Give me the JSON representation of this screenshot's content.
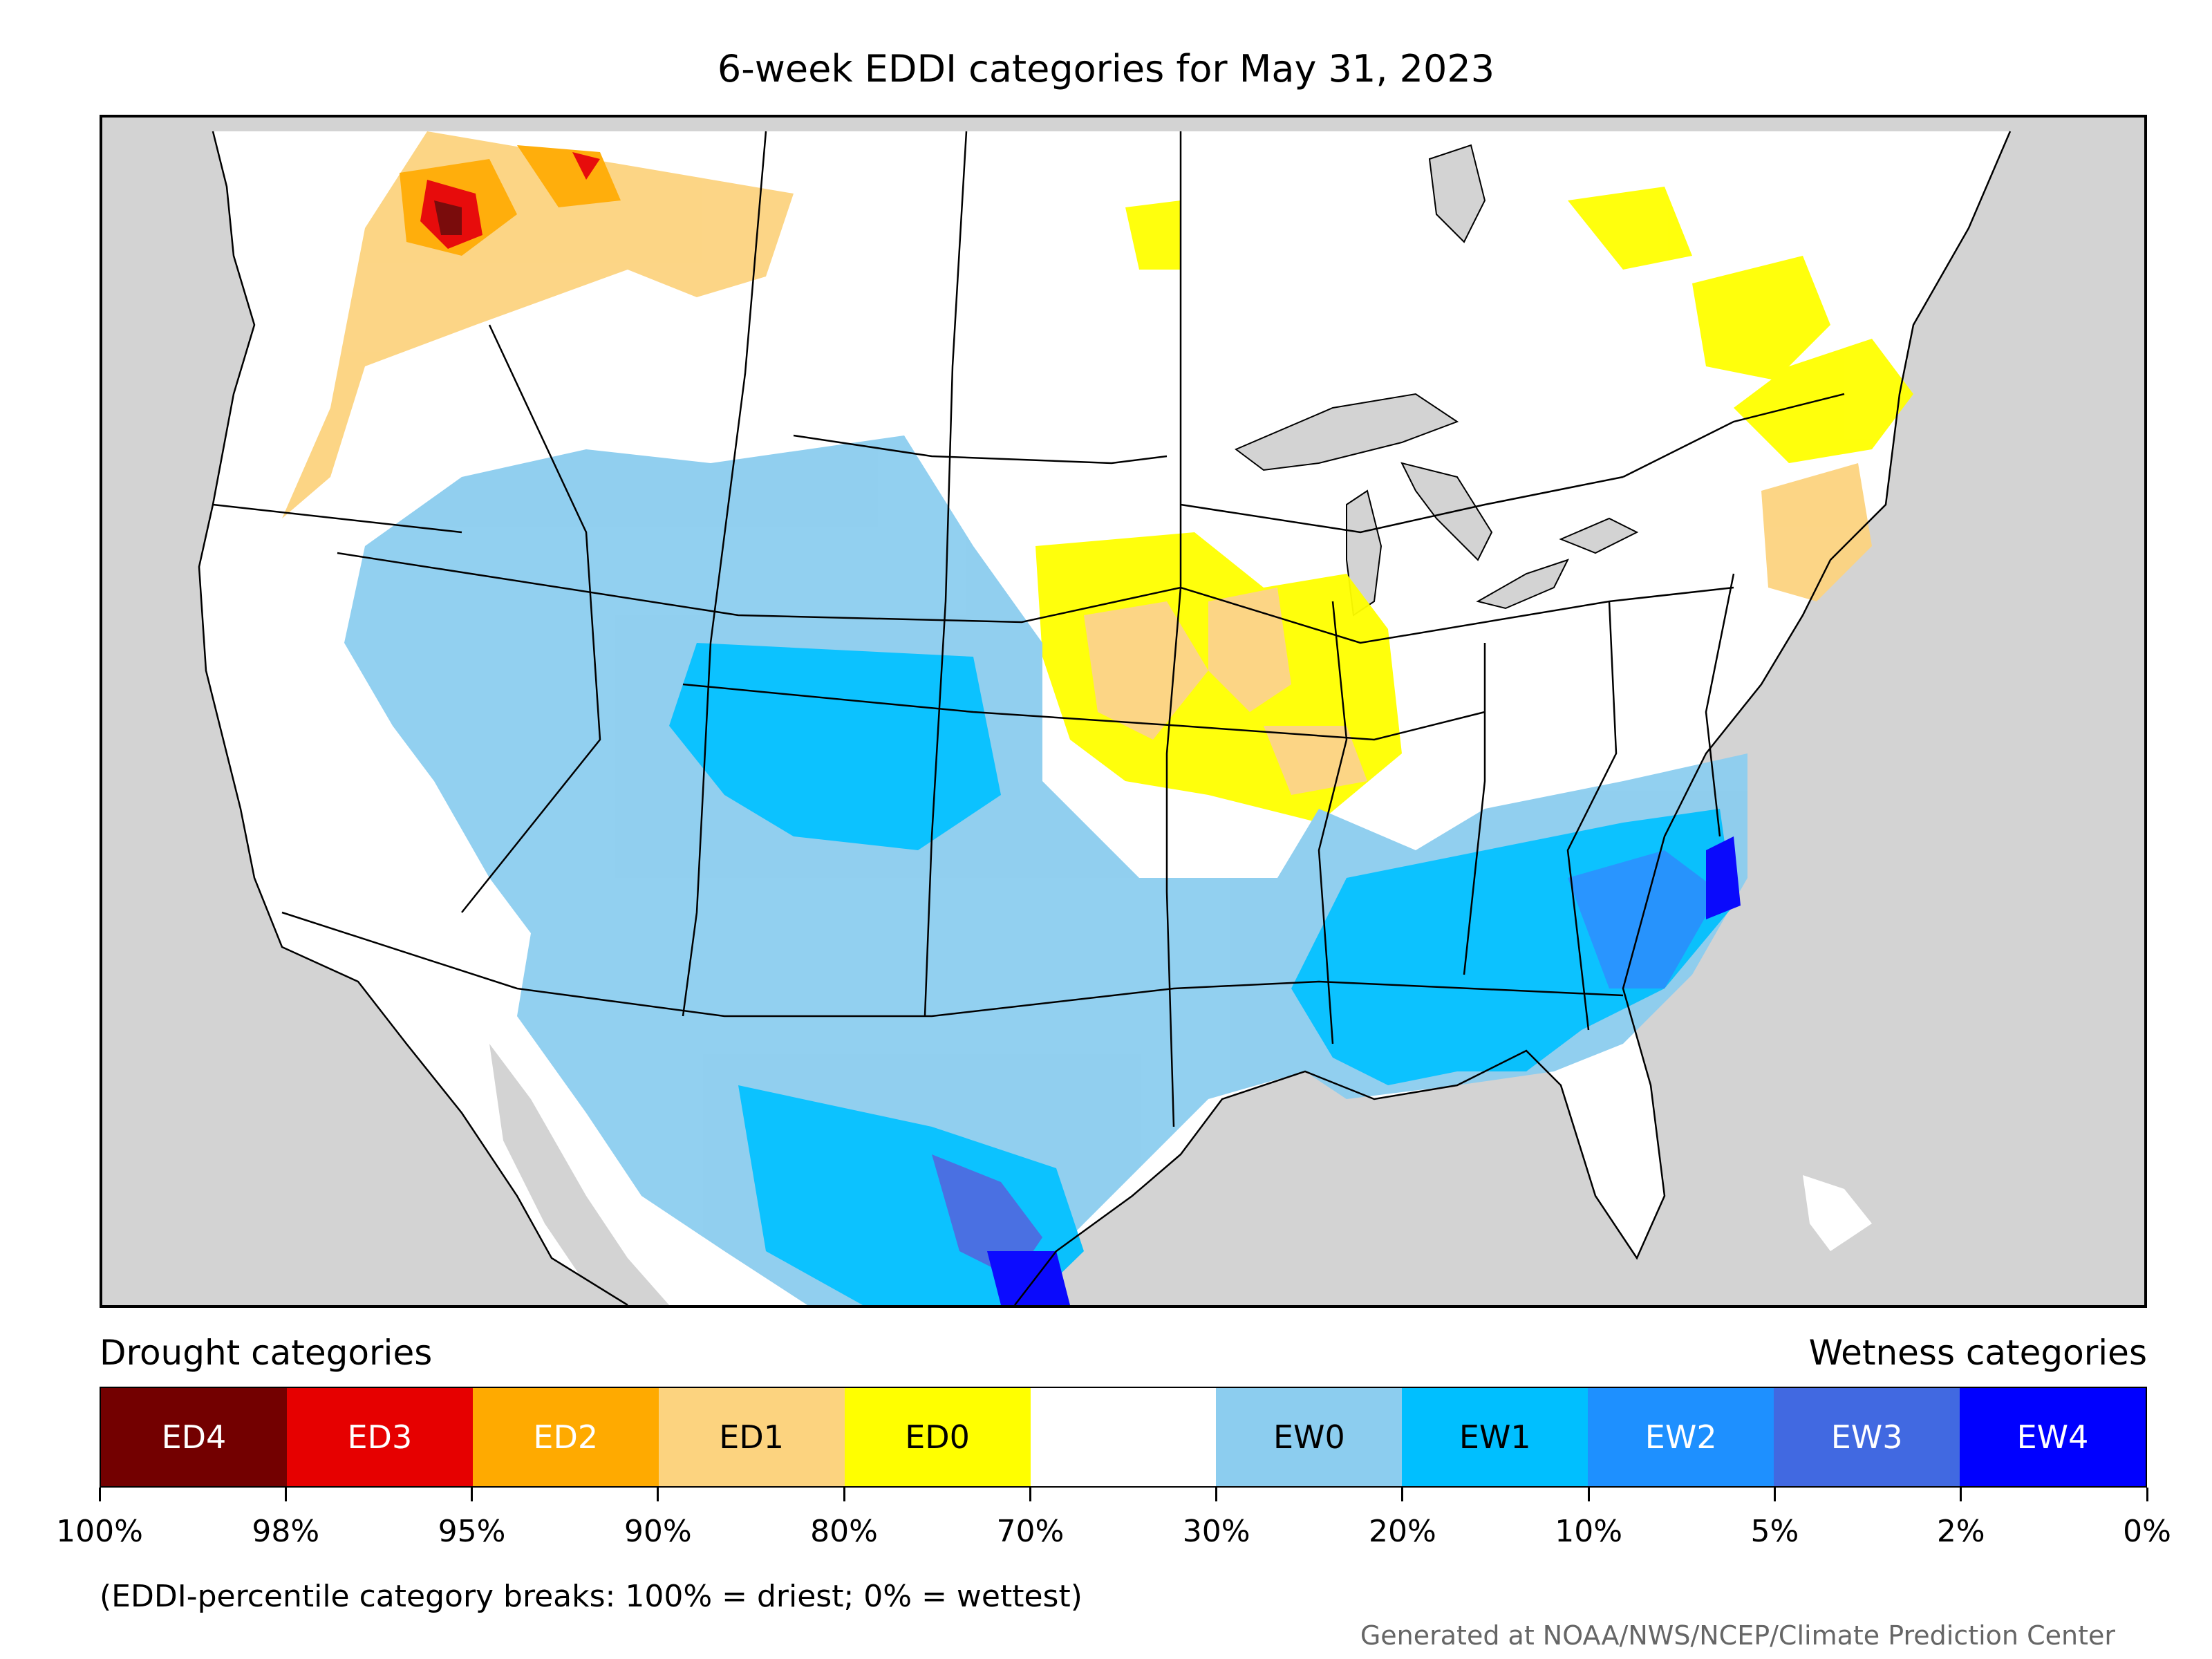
{
  "title": "6-week EDDI categories for May 31, 2023",
  "legend": {
    "drought_heading": "Drought categories",
    "wetness_heading": "Wetness categories",
    "categories": [
      {
        "label": "ED4",
        "color": "#730000",
        "text_color": "#ffffff"
      },
      {
        "label": "ED3",
        "color": "#e60000",
        "text_color": "#ffffff"
      },
      {
        "label": "ED2",
        "color": "#ffaa00",
        "text_color": "#ffffff"
      },
      {
        "label": "ED1",
        "color": "#fcd37f",
        "text_color": "#000000"
      },
      {
        "label": "ED0",
        "color": "#ffff00",
        "text_color": "#000000"
      },
      {
        "label": "",
        "color": "#ffffff",
        "text_color": "#000000"
      },
      {
        "label": "EW0",
        "color": "#8ccdef",
        "text_color": "#000000"
      },
      {
        "label": "EW1",
        "color": "#00bfff",
        "text_color": "#000000"
      },
      {
        "label": "EW2",
        "color": "#1e90ff",
        "text_color": "#ffffff"
      },
      {
        "label": "EW3",
        "color": "#4169e1",
        "text_color": "#ffffff"
      },
      {
        "label": "EW4",
        "color": "#0000ff",
        "text_color": "#ffffff"
      }
    ],
    "breaks": [
      "100%",
      "98%",
      "95%",
      "90%",
      "80%",
      "70%",
      "30%",
      "20%",
      "10%",
      "5%",
      "2%",
      "0%"
    ]
  },
  "note": "(EDDI-percentile category breaks: 100% = driest; 0% = wettest)",
  "credit": "Generated at NOAA/NWS/NCEP/Climate Prediction Center",
  "colors": {
    "background": "#d3d3d3",
    "land": "#ffffff",
    "lakes": "#d3d3d3"
  }
}
